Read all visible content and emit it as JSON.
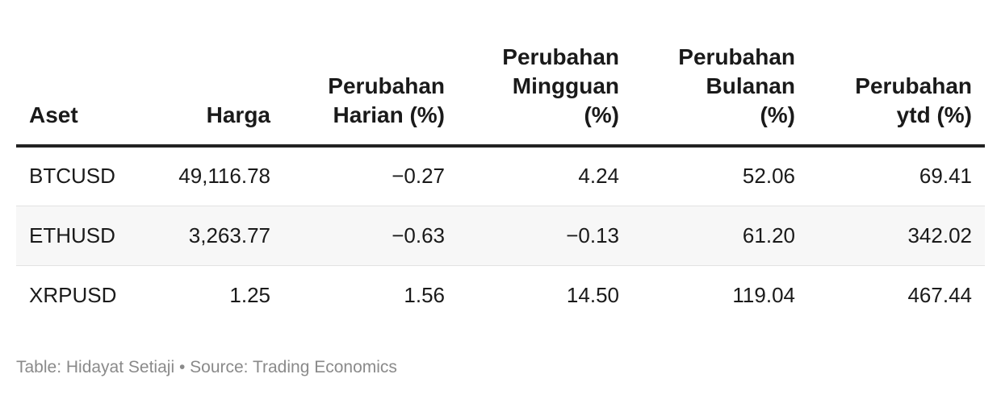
{
  "chart_data": {
    "type": "table",
    "columns": [
      "Aset",
      "Harga",
      "Perubahan Harian (%)",
      "Perubahan Mingguan (%)",
      "Perubahan Bulanan (%)",
      "Perubahan ytd (%)"
    ],
    "header": [
      [
        "Aset"
      ],
      [
        "Harga"
      ],
      [
        "Perubahan",
        "Harian (%)"
      ],
      [
        "Perubahan",
        "Mingguan",
        "(%)"
      ],
      [
        "Perubahan",
        "Bulanan",
        "(%)"
      ],
      [
        "Perubahan",
        "ytd (%)"
      ]
    ],
    "rows": [
      [
        "BTCUSD",
        "49,116.78",
        "−0.27",
        "4.24",
        "52.06",
        "69.41"
      ],
      [
        "ETHUSD",
        "3,263.77",
        "−0.63",
        "−0.13",
        "61.20",
        "342.02"
      ],
      [
        "XRPUSD",
        "1.25",
        "1.56",
        "14.50",
        "119.04",
        "467.44"
      ]
    ]
  },
  "footer": {
    "text": "Table: Hidayat Setiaji • Source: Trading Economics"
  }
}
